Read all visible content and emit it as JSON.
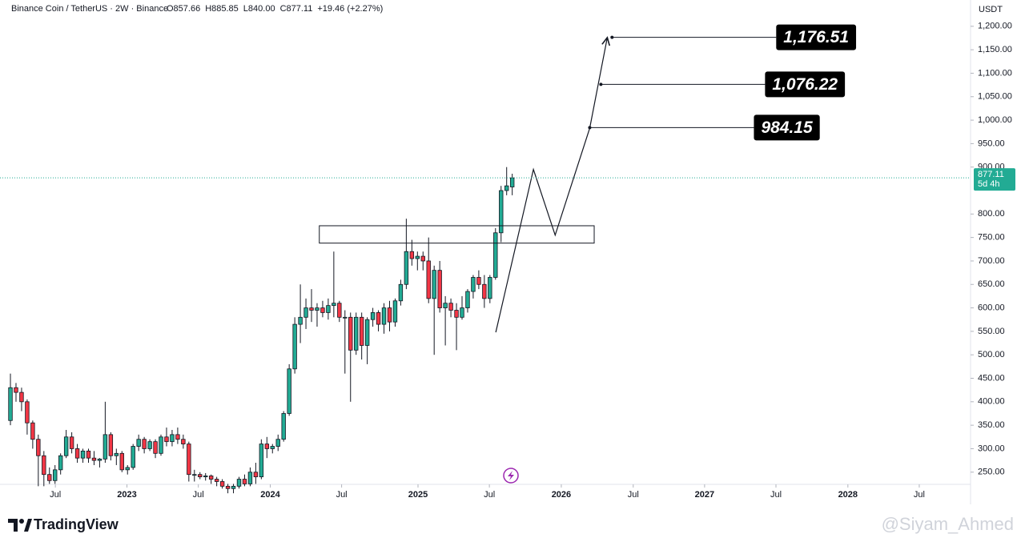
{
  "header": {
    "symbol": "Binance Coin / TetherUS · 2W · Binance",
    "open": "O857.66",
    "high": "H885.85",
    "low": "L840.00",
    "close": "C877.11",
    "change": "+19.46 (+2.27%)"
  },
  "chart_data": {
    "type": "candlestick",
    "currency": "USDT",
    "up_color": "#22ab94",
    "down_color": "#f23645",
    "grid": false,
    "x": [
      0,
      1,
      2,
      3,
      4,
      5,
      6,
      7,
      8,
      9,
      10,
      11,
      12,
      13,
      14,
      15,
      16,
      17,
      18,
      19,
      20,
      21,
      22,
      23,
      24,
      25,
      26,
      27,
      28,
      29,
      30,
      31,
      32,
      33,
      34,
      35,
      36,
      37,
      38,
      39,
      40,
      41,
      42,
      43,
      44,
      45,
      46,
      47,
      48,
      49,
      50,
      51,
      52,
      53,
      54,
      55,
      56,
      57,
      58,
      59,
      60,
      61,
      62,
      63,
      64,
      65,
      66,
      67,
      68,
      69,
      70,
      71,
      72,
      73,
      74,
      75,
      76,
      77,
      78,
      79,
      80,
      81,
      82,
      83,
      84,
      85,
      86,
      87,
      88,
      89,
      90
    ],
    "open": [
      360,
      430,
      420,
      400,
      355,
      320,
      285,
      245,
      232,
      255,
      285,
      325,
      300,
      280,
      295,
      280,
      275,
      278,
      330,
      285,
      290,
      255,
      260,
      305,
      320,
      300,
      315,
      290,
      325,
      315,
      330,
      320,
      310,
      245,
      245,
      240,
      242,
      235,
      230,
      220,
      215,
      220,
      235,
      225,
      250,
      240,
      310,
      300,
      305,
      320,
      375,
      470,
      565,
      580,
      600,
      595,
      600,
      590,
      605,
      610,
      580,
      580,
      510,
      580,
      520,
      575,
      590,
      565,
      600,
      570,
      615,
      650,
      720,
      705,
      710,
      700,
      620,
      680,
      600,
      610,
      595,
      580,
      600,
      635,
      665,
      650,
      620,
      665,
      760,
      850,
      857.66
    ],
    "high": [
      460,
      440,
      430,
      405,
      360,
      330,
      295,
      260,
      265,
      290,
      340,
      335,
      310,
      300,
      300,
      295,
      280,
      400,
      335,
      300,
      295,
      265,
      310,
      330,
      325,
      320,
      320,
      330,
      345,
      340,
      345,
      330,
      315,
      255,
      250,
      248,
      245,
      240,
      235,
      225,
      225,
      240,
      245,
      260,
      270,
      320,
      325,
      310,
      330,
      380,
      480,
      580,
      650,
      620,
      640,
      610,
      615,
      620,
      720,
      615,
      595,
      590,
      590,
      590,
      580,
      600,
      595,
      610,
      615,
      620,
      660,
      790,
      745,
      720,
      720,
      750,
      690,
      700,
      625,
      620,
      610,
      625,
      640,
      670,
      680,
      670,
      670,
      770,
      860,
      900,
      885.85
    ],
    "low": [
      350,
      400,
      380,
      330,
      300,
      220,
      220,
      225,
      225,
      245,
      280,
      290,
      270,
      270,
      270,
      265,
      260,
      270,
      275,
      265,
      250,
      245,
      255,
      295,
      290,
      295,
      280,
      285,
      305,
      305,
      310,
      300,
      230,
      230,
      235,
      232,
      225,
      220,
      215,
      205,
      205,
      215,
      220,
      220,
      225,
      235,
      280,
      290,
      295,
      315,
      370,
      460,
      525,
      555,
      570,
      560,
      580,
      575,
      580,
      570,
      460,
      400,
      500,
      490,
      480,
      560,
      550,
      545,
      550,
      560,
      605,
      640,
      690,
      680,
      680,
      610,
      500,
      590,
      520,
      580,
      510,
      575,
      590,
      620,
      640,
      600,
      610,
      660,
      740,
      840,
      840
    ],
    "close": [
      430,
      420,
      400,
      355,
      320,
      285,
      245,
      232,
      255,
      285,
      325,
      300,
      280,
      295,
      280,
      275,
      278,
      330,
      285,
      290,
      255,
      260,
      305,
      320,
      300,
      315,
      290,
      325,
      315,
      330,
      320,
      310,
      245,
      245,
      240,
      242,
      235,
      230,
      220,
      215,
      220,
      235,
      225,
      250,
      240,
      310,
      300,
      305,
      320,
      375,
      470,
      565,
      580,
      600,
      595,
      600,
      590,
      605,
      610,
      580,
      580,
      510,
      580,
      520,
      575,
      590,
      565,
      600,
      570,
      615,
      650,
      720,
      705,
      710,
      700,
      620,
      680,
      600,
      610,
      595,
      580,
      600,
      635,
      665,
      650,
      620,
      665,
      760,
      850,
      860,
      877.11
    ],
    "xlim": [
      -1.87,
      172.2
    ],
    "xticks": [
      {
        "value": 8.06,
        "label": "Jul"
      },
      {
        "value": 20.9,
        "label": "2023"
      },
      {
        "value": 33.7,
        "label": "Jul"
      },
      {
        "value": 46.6,
        "label": "2024"
      },
      {
        "value": 59.4,
        "label": "Jul"
      },
      {
        "value": 73.1,
        "label": "2025"
      },
      {
        "value": 85.9,
        "label": "Jul"
      },
      {
        "value": 98.8,
        "label": "2026"
      },
      {
        "value": 111.7,
        "label": "Jul"
      },
      {
        "value": 124.5,
        "label": "2027"
      },
      {
        "value": 137.3,
        "label": "Jul"
      },
      {
        "value": 150.2,
        "label": "2028"
      },
      {
        "value": 163.0,
        "label": "Jul"
      }
    ],
    "ylim": [
      224,
      1256
    ],
    "yticks": [
      {
        "value": 250,
        "label": "250.00"
      },
      {
        "value": 300,
        "label": "300.00"
      },
      {
        "value": 350,
        "label": "350.00"
      },
      {
        "value": 400,
        "label": "400.00"
      },
      {
        "value": 450,
        "label": "450.00"
      },
      {
        "value": 500,
        "label": "500.00"
      },
      {
        "value": 550,
        "label": "550.00"
      },
      {
        "value": 600,
        "label": "600.00"
      },
      {
        "value": 650,
        "label": "650.00"
      },
      {
        "value": 700,
        "label": "700.00"
      },
      {
        "value": 750,
        "label": "750.00"
      },
      {
        "value": 800,
        "label": "800.00"
      },
      {
        "value": 900,
        "label": "900.00"
      },
      {
        "value": 950,
        "label": "950.00"
      },
      {
        "value": 1000,
        "label": "1,000.00"
      },
      {
        "value": 1050,
        "label": "1,050.00"
      },
      {
        "value": 1100,
        "label": "1,100.00"
      },
      {
        "value": 1150,
        "label": "1,150.00"
      },
      {
        "value": 1200,
        "label": "1,200.00"
      }
    ],
    "countdown": "5d 4h",
    "zone": {
      "x": [
        55.4,
        104.7
      ],
      "y": [
        738,
        775
      ]
    },
    "projection": {
      "x": [
        87.05,
        93.8,
        97.7,
        103.9,
        107.05
      ],
      "y": [
        548,
        895,
        755,
        983,
        1176
      ]
    },
    "targets": [
      {
        "x": 103.9,
        "value": 984.15,
        "label": "984.15"
      },
      {
        "x": 105.9,
        "value": 1076.22,
        "label": "1,076.22"
      },
      {
        "x": 107.9,
        "value": 1176.51,
        "label": "1,176.51"
      }
    ]
  },
  "footer": {
    "brand": "TradingView",
    "watermark": "@Siyam_Ahmed"
  }
}
